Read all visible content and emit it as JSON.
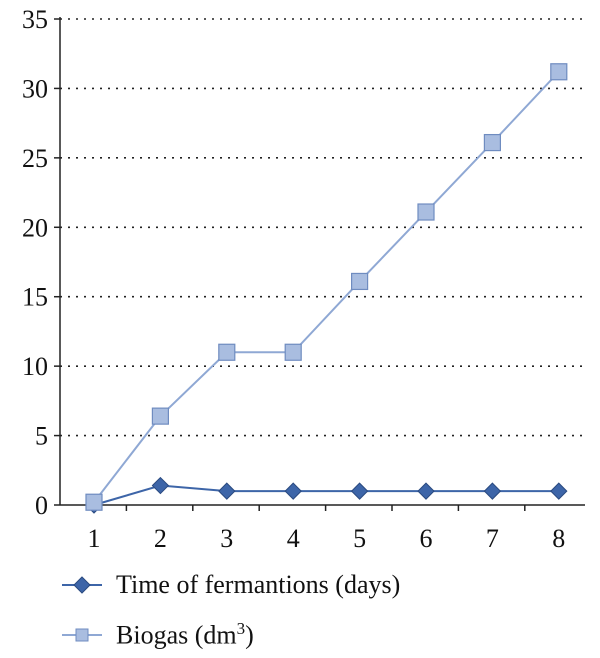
{
  "chart_data": {
    "type": "line",
    "categories": [
      "1",
      "2",
      "3",
      "4",
      "5",
      "6",
      "7",
      "8"
    ],
    "series": [
      {
        "name": "Time of fermantions (days)",
        "values": [
          0,
          1.4,
          1.0,
          1.0,
          1.0,
          1.0,
          1.0,
          1.0
        ],
        "color": "#3d65a8",
        "marker": "diamond"
      },
      {
        "name": "Biogas (dm3)",
        "name_main": "Biogas (dm",
        "name_sup": "3",
        "name_close": ")",
        "values": [
          0.2,
          6.4,
          11.0,
          11.0,
          16.1,
          21.1,
          26.1,
          31.2
        ],
        "color": "#8fa8d4",
        "marker": "square"
      }
    ],
    "y_ticks": [
      "0",
      "5",
      "10",
      "15",
      "20",
      "25",
      "30",
      "35"
    ],
    "ylim": [
      0,
      35
    ],
    "grid": "horizontal dotted",
    "legend_position": "bottom-left"
  }
}
